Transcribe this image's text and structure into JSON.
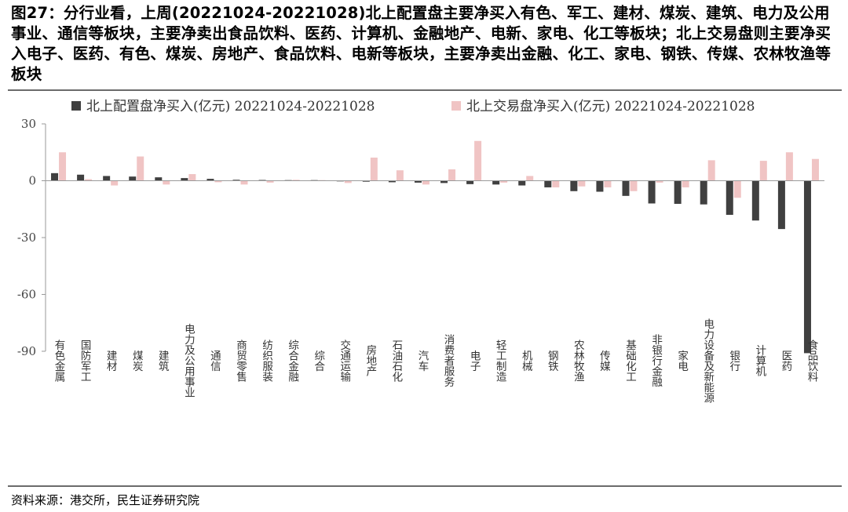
{
  "header": {
    "title": "图27：分行业看，上周(20221024-20221028)北上配置盘主要净买入有色、军工、建材、煤炭、建筑、电力及公用事业、通信等板块，主要净卖出食品饮料、医药、计算机、金融地产、电新、家电、化工等板块；北上交易盘则主要净买入电子、医药、有色、煤炭、房地产、食品饮料、电新等板块，主要净卖出金融、化工、家电、钢铁、传媒、农林牧渔等板块"
  },
  "footer": {
    "source": "资料来源：港交所，民生证券研究院"
  },
  "colors": {
    "series1": "#404040",
    "series2": "#f0c4c4",
    "axis": "#9a9a9a"
  },
  "chart_data": {
    "type": "bar",
    "title": "",
    "xlabel": "",
    "ylabel": "",
    "ylim": [
      -90,
      30
    ],
    "yticks": [
      "30",
      "0",
      "-30",
      "-60",
      "-90"
    ],
    "legend_position": "top",
    "grid": false,
    "categories": [
      "有色金属",
      "国防军工",
      "建材",
      "煤炭",
      "建筑",
      "电力及公用事业",
      "通信",
      "商贸零售",
      "纺织服装",
      "综合金融",
      "综合",
      "交通运输",
      "房地产",
      "石油石化",
      "汽车",
      "消费者服务",
      "电子",
      "轻工制造",
      "机械",
      "钢铁",
      "农林牧渔",
      "传媒",
      "基础化工",
      "非银行金融",
      "家电",
      "电力设备及新能源",
      "银行",
      "计算机",
      "医药",
      "食品饮料"
    ],
    "series": [
      {
        "name": "北上配置盘净买入(亿元) 20221024-20221028",
        "values": [
          4.0,
          3.2,
          2.5,
          2.2,
          1.8,
          1.4,
          1.0,
          0.5,
          0.4,
          0.3,
          0.2,
          -0.3,
          -0.5,
          -0.8,
          -1.0,
          -1.2,
          -1.8,
          -2.0,
          -2.5,
          -3.5,
          -5.5,
          -5.8,
          -8.0,
          -12.0,
          -12.2,
          -12.5,
          -18.0,
          -21.0,
          -25.5,
          -91.0
        ]
      },
      {
        "name": "北上交易盘净买入(亿元) 20221024-20221028",
        "values": [
          15.0,
          0.8,
          -2.5,
          12.8,
          -2.0,
          3.5,
          -0.8,
          -2.0,
          -1.0,
          0.5,
          0.3,
          -1.2,
          12.2,
          5.5,
          -2.0,
          6.0,
          21.0,
          -1.0,
          2.5,
          -3.5,
          -3.0,
          -3.5,
          -5.5,
          -1.0,
          -3.5,
          10.8,
          -9.0,
          10.5,
          15.0,
          11.5
        ]
      }
    ]
  }
}
